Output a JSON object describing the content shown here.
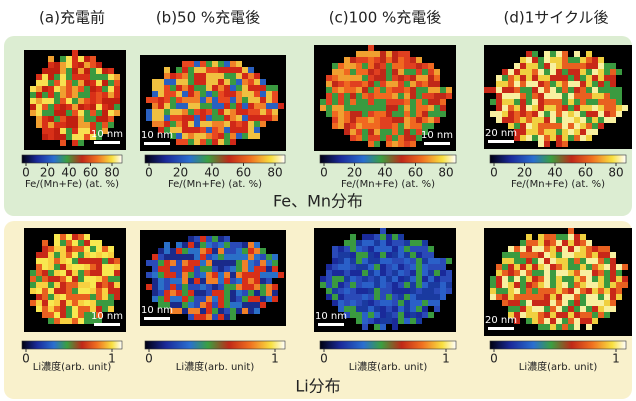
{
  "columns": [
    {
      "title": "(a)充電前"
    },
    {
      "title": "(b)50 %充電後"
    },
    {
      "title": "(c)100 %充電後"
    },
    {
      "title": "(d)1サイクル後"
    }
  ],
  "rows": [
    {
      "label": "Fe、Mn分布",
      "colorbar": {
        "ticks": [
          0,
          20,
          40,
          60,
          80
        ],
        "label": "Fe/(Mn+Fe) (at. %)"
      },
      "panels": [
        {
          "scale_bar": "10 nm"
        },
        {
          "scale_bar": "10 nm"
        },
        {
          "scale_bar": "10 nm"
        },
        {
          "scale_bar": "20 nm"
        }
      ]
    },
    {
      "label": "Li分布",
      "colorbar": {
        "ticks": [
          0,
          1
        ],
        "label": "Li濃度(arb. unit)"
      },
      "panels": [
        {
          "scale_bar": "10 nm"
        },
        {
          "scale_bar": "10 nm"
        },
        {
          "scale_bar": "10 nm"
        },
        {
          "scale_bar": "20 nm"
        }
      ]
    }
  ]
}
